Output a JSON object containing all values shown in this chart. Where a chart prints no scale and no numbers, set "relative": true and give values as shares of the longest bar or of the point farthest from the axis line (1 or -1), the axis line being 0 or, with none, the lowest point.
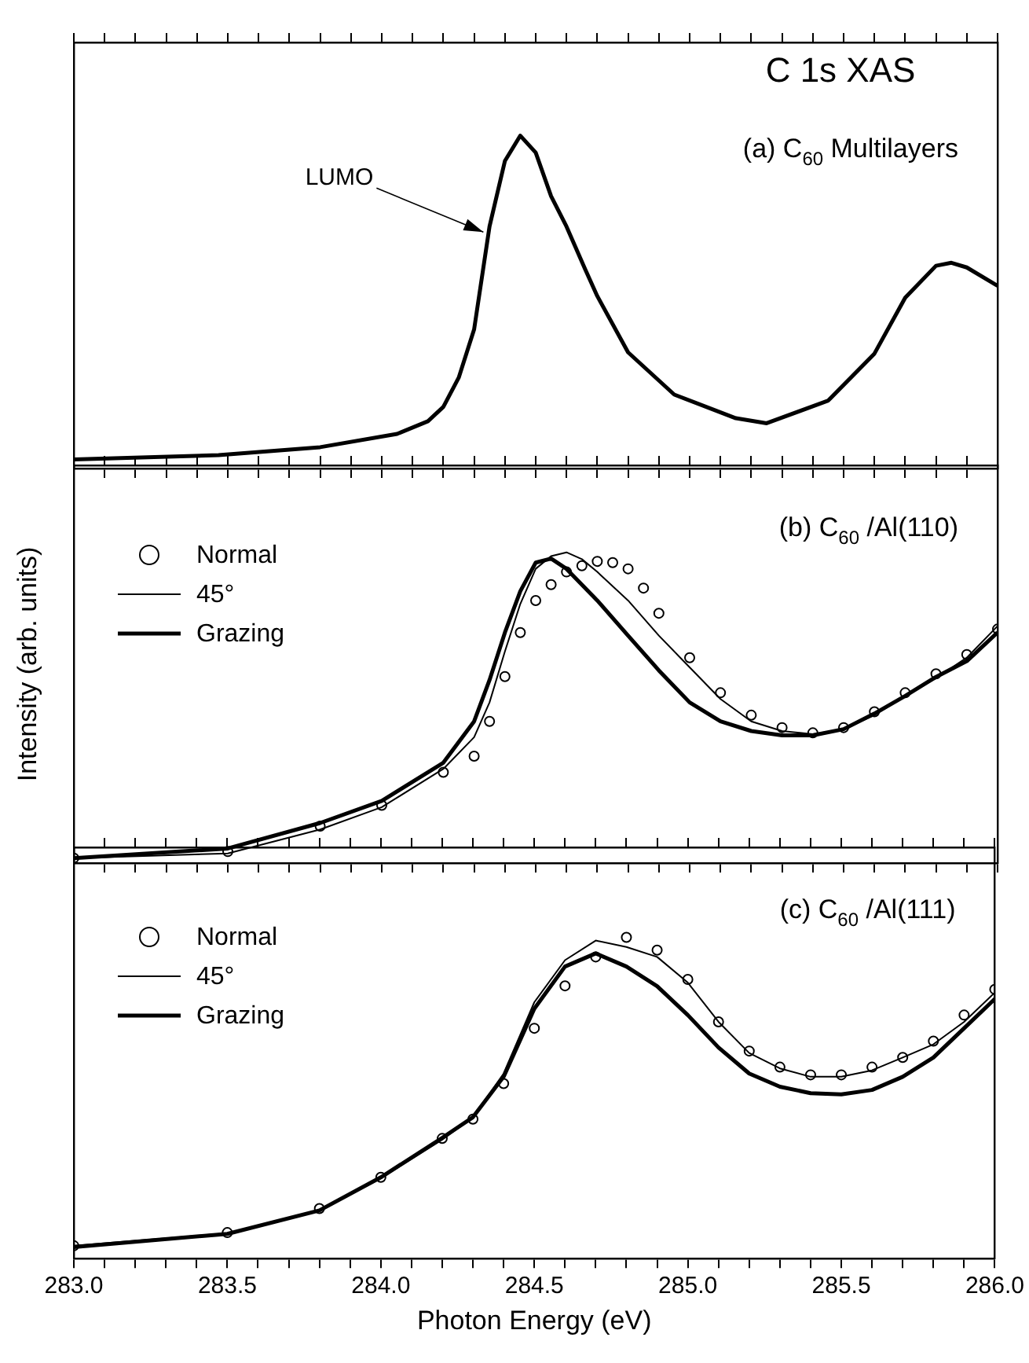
{
  "chart_data": [
    {
      "type": "line",
      "title": "C 1s XAS",
      "relative": true,
      "tick_labels": false,
      "xlim": [
        283,
        286
      ],
      "xticks": [
        {
          "value": 283,
          "label": null
        },
        {
          "value": 283.1,
          "label": null
        },
        {
          "value": 283.2,
          "label": null
        },
        {
          "value": 283.3,
          "label": null
        },
        {
          "value": 283.4,
          "label": null
        },
        {
          "value": 283.5,
          "label": null
        },
        {
          "value": 283.6,
          "label": null
        },
        {
          "value": 283.7,
          "label": null
        },
        {
          "value": 283.8,
          "label": null
        },
        {
          "value": 283.9,
          "label": null
        },
        {
          "value": 284,
          "label": null
        },
        {
          "value": 284.1,
          "label": null
        },
        {
          "value": 284.2,
          "label": null
        },
        {
          "value": 284.3,
          "label": null
        },
        {
          "value": 284.4,
          "label": null
        },
        {
          "value": 284.5,
          "label": null
        },
        {
          "value": 284.6,
          "label": null
        },
        {
          "value": 284.7,
          "label": null
        },
        {
          "value": 284.8,
          "label": null
        },
        {
          "value": 284.9,
          "label": null
        },
        {
          "value": 285,
          "label": null
        },
        {
          "value": 285.1,
          "label": null
        },
        {
          "value": 285.2,
          "label": null
        },
        {
          "value": 285.3,
          "label": null
        },
        {
          "value": 285.4,
          "label": null
        },
        {
          "value": 285.5,
          "label": null
        },
        {
          "value": 285.6,
          "label": null
        },
        {
          "value": 285.7,
          "label": null
        },
        {
          "value": 285.8,
          "label": null
        },
        {
          "value": 285.9,
          "label": null
        },
        {
          "value": 286,
          "label": null
        }
      ],
      "annotations": [
        "(a) C$_{60}$ Multilayers",
        {
          "text": "LUMO",
          "x": 284.33,
          "y": 0.71
        }
      ],
      "series": [
        {
          "color": "#000000",
          "x": [
            283.0,
            283.47,
            283.8,
            284.05,
            284.15,
            284.2,
            284.25,
            284.3,
            284.35,
            284.4,
            284.45,
            284.5,
            284.55,
            284.6,
            284.66,
            284.7,
            284.8,
            284.95,
            285.15,
            285.25,
            285.45,
            285.6,
            285.7,
            285.8,
            285.85,
            285.9,
            286.0
          ],
          "values": [
            0.027,
            0.04,
            0.064,
            0.104,
            0.142,
            0.185,
            0.273,
            0.418,
            0.727,
            0.924,
            1,
            0.949,
            0.818,
            0.727,
            0.6,
            0.518,
            0.349,
            0.222,
            0.151,
            0.136,
            0.204,
            0.345,
            0.513,
            0.609,
            0.618,
            0.604,
            0.549
          ]
        }
      ]
    },
    {
      "type": "line",
      "ylabel": "Intensity (arb. units)",
      "relative": true,
      "tick_labels": false,
      "legend": "top left",
      "xlim": [
        283,
        286
      ],
      "xticks": [
        {
          "value": 283,
          "label": null
        },
        {
          "value": 283.1,
          "label": null
        },
        {
          "value": 283.2,
          "label": null
        },
        {
          "value": 283.3,
          "label": null
        },
        {
          "value": 283.4,
          "label": null
        },
        {
          "value": 283.5,
          "label": null
        },
        {
          "value": 283.6,
          "label": null
        },
        {
          "value": 283.7,
          "label": null
        },
        {
          "value": 283.8,
          "label": null
        },
        {
          "value": 283.9,
          "label": null
        },
        {
          "value": 284,
          "label": null
        },
        {
          "value": 284.1,
          "label": null
        },
        {
          "value": 284.2,
          "label": null
        },
        {
          "value": 284.3,
          "label": null
        },
        {
          "value": 284.4,
          "label": null
        },
        {
          "value": 284.5,
          "label": null
        },
        {
          "value": 284.6,
          "label": null
        },
        {
          "value": 284.7,
          "label": null
        },
        {
          "value": 284.8,
          "label": null
        },
        {
          "value": 284.9,
          "label": null
        },
        {
          "value": 285,
          "label": null
        },
        {
          "value": 285.1,
          "label": null
        },
        {
          "value": 285.2,
          "label": null
        },
        {
          "value": 285.3,
          "label": null
        },
        {
          "value": 285.4,
          "label": null
        },
        {
          "value": 285.5,
          "label": null
        },
        {
          "value": 285.6,
          "label": null
        },
        {
          "value": 285.7,
          "label": null
        },
        {
          "value": 285.8,
          "label": null
        },
        {
          "value": 285.9,
          "label": null
        },
        {
          "value": 286,
          "label": null
        }
      ],
      "annotations": [
        "(b) C$_{60}$ /Al(110)"
      ],
      "series": [
        {
          "name": "Normal",
          "type": "scatter",
          "marker": "circle",
          "color": "#000000",
          "x": [
            283.0,
            283.5,
            283.8,
            284.0,
            284.2,
            284.3,
            284.35,
            284.4,
            284.45,
            284.5,
            284.55,
            284.6,
            284.65,
            284.7,
            284.75,
            284.8,
            284.85,
            284.9,
            285.0,
            285.1,
            285.2,
            285.3,
            285.4,
            285.5,
            285.6,
            285.7,
            285.8,
            285.9,
            286.0
          ],
          "values": [
            0.016,
            0.037,
            0.119,
            0.186,
            0.292,
            0.344,
            0.456,
            0.6,
            0.742,
            0.845,
            0.896,
            0.937,
            0.957,
            0.971,
            0.967,
            0.947,
            0.885,
            0.804,
            0.661,
            0.548,
            0.476,
            0.436,
            0.419,
            0.436,
            0.487,
            0.548,
            0.609,
            0.671,
            0.753
          ]
        },
        {
          "name": "45°",
          "color": "#000000",
          "x": [
            283.0,
            283.5,
            283.8,
            284.0,
            284.2,
            284.3,
            284.35,
            284.4,
            284.45,
            284.5,
            284.55,
            284.6,
            284.65,
            284.7,
            284.8,
            284.9,
            285.0,
            285.1,
            285.2,
            285.3,
            285.4,
            285.5,
            285.6,
            285.7,
            285.8,
            285.9,
            286.0
          ],
          "values": [
            0.016,
            0.031,
            0.108,
            0.18,
            0.303,
            0.405,
            0.517,
            0.681,
            0.834,
            0.947,
            0.988,
            1,
            0.978,
            0.937,
            0.845,
            0.732,
            0.63,
            0.528,
            0.456,
            0.425,
            0.415,
            0.431,
            0.476,
            0.538,
            0.595,
            0.661,
            0.763
          ]
        },
        {
          "name": "Grazing",
          "color": "#000000",
          "x": [
            283.0,
            283.5,
            283.8,
            284.0,
            284.2,
            284.3,
            284.35,
            284.4,
            284.45,
            284.5,
            284.55,
            284.6,
            284.7,
            284.8,
            284.9,
            285.0,
            285.1,
            285.2,
            285.3,
            285.4,
            285.5,
            285.6,
            285.7,
            285.8,
            285.9,
            286.0
          ],
          "values": [
            0.016,
            0.047,
            0.129,
            0.2,
            0.323,
            0.456,
            0.589,
            0.742,
            0.875,
            0.967,
            0.98,
            0.947,
            0.845,
            0.732,
            0.62,
            0.517,
            0.456,
            0.425,
            0.411,
            0.411,
            0.431,
            0.481,
            0.538,
            0.599,
            0.65,
            0.742
          ]
        }
      ]
    },
    {
      "type": "line",
      "xlabel": "Photon Energy (eV)",
      "relative": true,
      "tick_labels": "x",
      "legend": "top left",
      "xlim": [
        283,
        286
      ],
      "xticks": [
        {
          "value": 283,
          "label": "283.0"
        },
        {
          "value": 283.1,
          "label": null
        },
        {
          "value": 283.2,
          "label": null
        },
        {
          "value": 283.3,
          "label": null
        },
        {
          "value": 283.4,
          "label": null
        },
        {
          "value": 283.5,
          "label": "283.5"
        },
        {
          "value": 283.6,
          "label": null
        },
        {
          "value": 283.7,
          "label": null
        },
        {
          "value": 283.8,
          "label": null
        },
        {
          "value": 283.9,
          "label": null
        },
        {
          "value": 284,
          "label": "284.0"
        },
        {
          "value": 284.1,
          "label": null
        },
        {
          "value": 284.2,
          "label": null
        },
        {
          "value": 284.3,
          "label": null
        },
        {
          "value": 284.4,
          "label": null
        },
        {
          "value": 284.5,
          "label": "284.5"
        },
        {
          "value": 284.6,
          "label": null
        },
        {
          "value": 284.7,
          "label": null
        },
        {
          "value": 284.8,
          "label": null
        },
        {
          "value": 284.9,
          "label": null
        },
        {
          "value": 285,
          "label": "285.0"
        },
        {
          "value": 285.1,
          "label": null
        },
        {
          "value": 285.2,
          "label": null
        },
        {
          "value": 285.3,
          "label": null
        },
        {
          "value": 285.4,
          "label": null
        },
        {
          "value": 285.5,
          "label": "285.5"
        },
        {
          "value": 285.6,
          "label": null
        },
        {
          "value": 285.7,
          "label": null
        },
        {
          "value": 285.8,
          "label": null
        },
        {
          "value": 285.9,
          "label": null
        },
        {
          "value": 286,
          "label": "286.0"
        }
      ],
      "annotations": [
        "(c) C$_{60}$ /Al(111)"
      ],
      "series": [
        {
          "name": "Normal",
          "type": "scatter",
          "marker": "circle",
          "color": "#000000",
          "x": [
            283.0,
            283.5,
            283.8,
            284.0,
            284.2,
            284.3,
            284.4,
            284.5,
            284.6,
            284.7,
            284.8,
            284.9,
            285.0,
            285.1,
            285.2,
            285.3,
            285.4,
            285.5,
            285.6,
            285.7,
            285.8,
            285.9,
            286.0
          ],
          "values": [
            0.04,
            0.081,
            0.156,
            0.253,
            0.374,
            0.434,
            0.545,
            0.717,
            0.849,
            0.939,
            1,
            0.96,
            0.869,
            0.737,
            0.646,
            0.596,
            0.572,
            0.572,
            0.596,
            0.626,
            0.677,
            0.758,
            0.838
          ]
        },
        {
          "name": "45°",
          "color": "#000000",
          "x": [
            283.0,
            283.5,
            283.8,
            284.0,
            284.2,
            284.3,
            284.4,
            284.5,
            284.6,
            284.7,
            284.8,
            284.9,
            285.0,
            285.1,
            285.2,
            285.3,
            285.4,
            285.5,
            285.6,
            285.7,
            285.8,
            285.9,
            286.0
          ],
          "values": [
            0.04,
            0.079,
            0.15,
            0.25,
            0.37,
            0.44,
            0.576,
            0.798,
            0.929,
            0.99,
            0.97,
            0.939,
            0.859,
            0.737,
            0.64,
            0.592,
            0.566,
            0.566,
            0.586,
            0.626,
            0.667,
            0.737,
            0.828
          ]
        },
        {
          "name": "Grazing",
          "color": "#000000",
          "x": [
            283.0,
            283.5,
            283.8,
            284.0,
            284.2,
            284.3,
            284.4,
            284.5,
            284.6,
            284.7,
            284.8,
            284.9,
            285.0,
            285.1,
            285.2,
            285.3,
            285.4,
            285.5,
            285.6,
            285.7,
            285.8,
            285.9,
            286.0
          ],
          "values": [
            0.036,
            0.077,
            0.15,
            0.253,
            0.376,
            0.44,
            0.566,
            0.778,
            0.909,
            0.95,
            0.909,
            0.848,
            0.758,
            0.657,
            0.576,
            0.535,
            0.515,
            0.511,
            0.525,
            0.566,
            0.626,
            0.717,
            0.808
          ]
        }
      ]
    }
  ]
}
